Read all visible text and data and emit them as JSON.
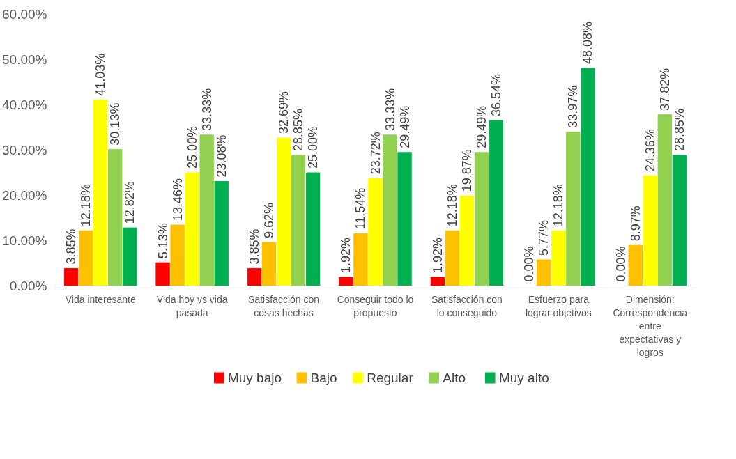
{
  "chart_data": {
    "type": "bar",
    "categories": [
      "Vida interesante",
      "Vida hoy vs vida pasada",
      "Satisfacción con cosas hechas",
      "Conseguir todo lo propuesto",
      "Satisfacción con lo conseguido",
      "Esfuerzo para lograr objetivos",
      "Dimensión: Correspondencia entre expectativas y logros"
    ],
    "series": [
      {
        "name": "Muy bajo",
        "color": "#ff0000",
        "values": [
          3.85,
          5.13,
          3.85,
          1.92,
          1.92,
          0.0,
          0.0
        ],
        "value_labels": [
          "3.85%",
          "5.13%",
          "3.85%",
          "1.92%",
          "1.92%",
          "0.00%",
          "0.00%"
        ]
      },
      {
        "name": "Bajo",
        "color": "#ffc000",
        "values": [
          12.18,
          13.46,
          9.62,
          11.54,
          12.18,
          5.77,
          8.97
        ],
        "value_labels": [
          "12.18%",
          "13.46%",
          "9.62%",
          "11.54%",
          "12.18%",
          "5.77%",
          "8.97%"
        ]
      },
      {
        "name": "Regular",
        "color": "#ffff00",
        "values": [
          41.03,
          25.0,
          32.69,
          23.72,
          19.87,
          12.18,
          24.36
        ],
        "value_labels": [
          "41.03%",
          "25.00%",
          "32.69%",
          "23.72%",
          "19.87%",
          "12.18%",
          "24.36%"
        ]
      },
      {
        "name": "Alto",
        "color": "#92d050",
        "values": [
          30.13,
          33.33,
          28.85,
          33.33,
          29.49,
          33.97,
          37.82
        ],
        "value_labels": [
          "30.13%",
          "33.33%",
          "28.85%",
          "33.33%",
          "29.49%",
          "33.97%",
          "37.82%"
        ]
      },
      {
        "name": "Muy alto",
        "color": "#00b050",
        "values": [
          12.82,
          23.08,
          25.0,
          29.49,
          36.54,
          48.08,
          28.85
        ],
        "value_labels": [
          "12.82%",
          "23.08%",
          "25.00%",
          "29.49%",
          "36.54%",
          "48.08%",
          "28.85%"
        ]
      }
    ],
    "ylim": [
      0,
      60
    ],
    "yticks": [
      {
        "value": 0,
        "label": "0.00%"
      },
      {
        "value": 10,
        "label": "10.00%"
      },
      {
        "value": 20,
        "label": "20.00%"
      },
      {
        "value": 30,
        "label": "30.00%"
      },
      {
        "value": 40,
        "label": "40.00%"
      },
      {
        "value": 50,
        "label": "50.00%"
      },
      {
        "value": 60,
        "label": "60.00%"
      }
    ],
    "grid": false,
    "legend": "bottom"
  }
}
